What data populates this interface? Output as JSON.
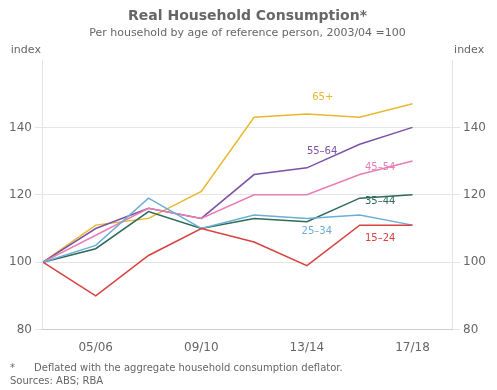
{
  "chart_data": {
    "type": "line",
    "title": "Real Household Consumption*",
    "subtitle": "Per household by age of reference person, 2003/04 =100",
    "ylabel": "index",
    "y2label": "index",
    "footnotes": [
      "*      Deflated with the aggregate household consumption deflator.",
      "Sources: ABS; RBA"
    ],
    "x": [
      2003,
      2005,
      2007,
      2009,
      2011,
      2013,
      2015,
      2017
    ],
    "xlim": [
      2003,
      2018.5
    ],
    "xticks": [
      {
        "value": 2005,
        "label": "05/06"
      },
      {
        "value": 2009,
        "label": "09/10"
      },
      {
        "value": 2013,
        "label": "13/14"
      },
      {
        "value": 2017,
        "label": "17/18"
      }
    ],
    "ylim": [
      80,
      160
    ],
    "yticks": [
      80,
      100,
      120,
      140
    ],
    "y2lim": [
      80,
      160
    ],
    "y2ticks": [
      80,
      100,
      120,
      140
    ],
    "grid": "y",
    "series": [
      {
        "name": "15–24",
        "color": "#d94040",
        "values": [
          100,
          90,
          102,
          110,
          106,
          99,
          111,
          111
        ]
      },
      {
        "name": "25–34",
        "color": "#6baed6",
        "values": [
          100,
          105,
          119,
          110,
          114,
          113,
          114,
          111
        ]
      },
      {
        "name": "35–44",
        "color": "#2d6b5a",
        "values": [
          100,
          104,
          115,
          110,
          113,
          112,
          119,
          120
        ]
      },
      {
        "name": "45–54",
        "color": "#e87eb4",
        "values": [
          100,
          108,
          116,
          113,
          120,
          120,
          126,
          130
        ]
      },
      {
        "name": "55–64",
        "color": "#7b52a8",
        "values": [
          100,
          110,
          116,
          113,
          126,
          128,
          135,
          140
        ]
      },
      {
        "name": "65+",
        "color": "#e8b830",
        "values": [
          100,
          111,
          113,
          121,
          143,
          144,
          143,
          147
        ]
      }
    ],
    "annotations": [
      {
        "text": "15–24",
        "x": 2015.2,
        "y": 107,
        "color": "#d94040"
      },
      {
        "text": "25–34",
        "x": 2012.8,
        "y": 109,
        "color": "#6baed6"
      },
      {
        "text": "35–44",
        "x": 2015.2,
        "y": 118,
        "color": "#2d6b5a"
      },
      {
        "text": "45–54",
        "x": 2015.2,
        "y": 128,
        "color": "#e87eb4"
      },
      {
        "text": "55–64",
        "x": 2013.0,
        "y": 133,
        "color": "#7b52a8"
      },
      {
        "text": "65+",
        "x": 2013.2,
        "y": 149,
        "color": "#e8b830"
      }
    ]
  }
}
